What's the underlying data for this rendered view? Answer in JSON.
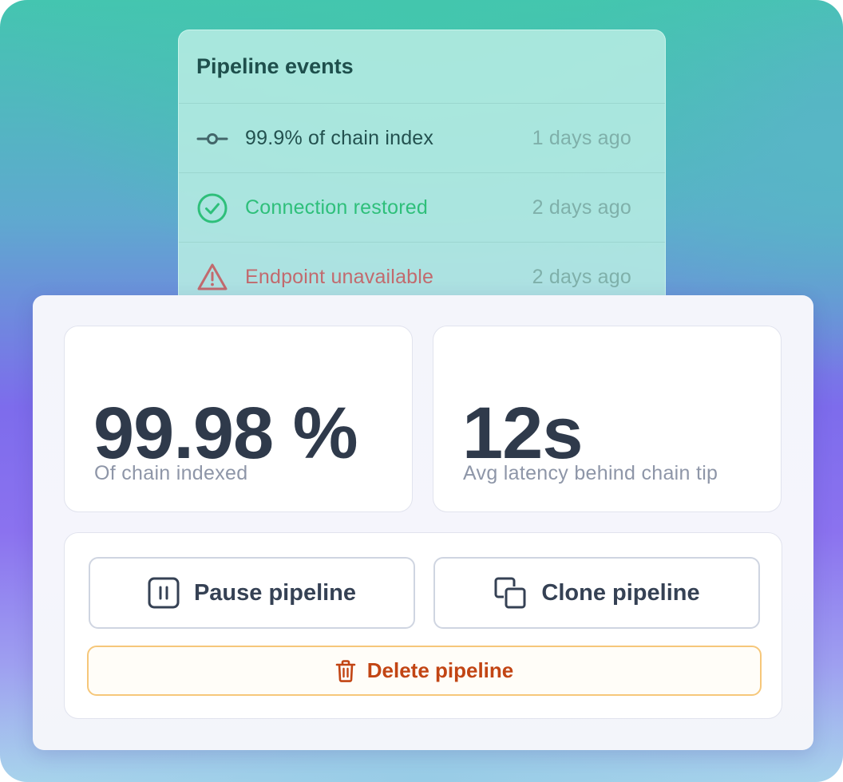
{
  "events_panel": {
    "title": "Pipeline events",
    "events": [
      {
        "icon": "commit-icon",
        "text": "99.9% of chain index",
        "time": "1 days ago",
        "text_color": "#23514f"
      },
      {
        "icon": "check-circle-icon",
        "text": "Connection restored",
        "time": "2 days ago",
        "text_color": "#2ebf7a"
      },
      {
        "icon": "warning-triangle-icon",
        "text": "Endpoint unavailable",
        "time": "2 days ago",
        "text_color": "#c26a6e"
      }
    ]
  },
  "stats": {
    "indexed": {
      "value": "99.98 %",
      "label": "Of chain indexed"
    },
    "latency": {
      "value": "12s",
      "label": "Avg latency behind chain tip"
    }
  },
  "actions": {
    "pause_label": "Pause pipeline",
    "clone_label": "Clone pipeline",
    "delete_label": "Delete pipeline"
  },
  "colors": {
    "danger": "#c24514",
    "danger_border": "#f6c77a",
    "success": "#2ebf7a",
    "warning": "#c26a6e"
  }
}
